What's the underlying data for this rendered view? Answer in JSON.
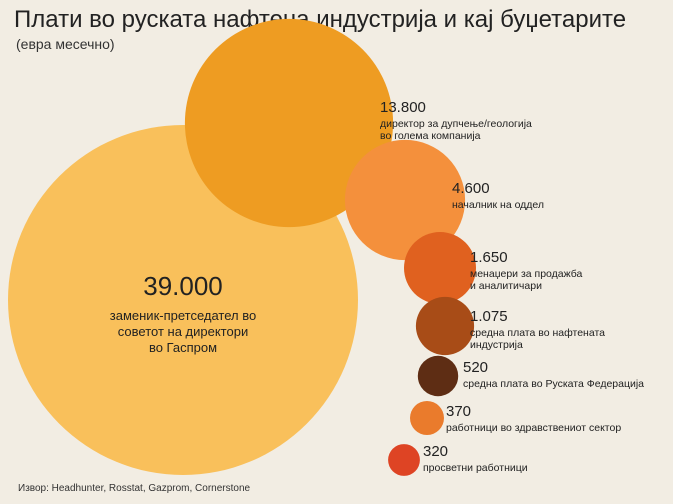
{
  "title": "Плати во руската нафтена индустрија и кај буџетарите",
  "subtitle": "(евра месечно)",
  "source": "Извор: Headhunter, Rosstat, Gazprom, Cornerstone",
  "chart_data": {
    "type": "bubble",
    "title": "Плати во руската нафтена индустрија и кај буџетарите",
    "subtitle": "(евра месечно)",
    "unit": "евра месечно",
    "series": [
      {
        "value": 39000,
        "value_label": "39.000",
        "label_lines": [
          "заменик-претседател во",
          "советот на директори",
          "во Гаспром"
        ],
        "color": "#f9c05b"
      },
      {
        "value": 13800,
        "value_label": "13.800",
        "label_lines": [
          "директор за дупчење/геологија",
          "во голема компанија"
        ],
        "color": "#ee9c22"
      },
      {
        "value": 4600,
        "value_label": "4.600",
        "label_lines": [
          "началник на оддел"
        ],
        "color": "#f4903c"
      },
      {
        "value": 1650,
        "value_label": "1.650",
        "label_lines": [
          "менаџери за продажба",
          "и аналитичари"
        ],
        "color": "#e0611f"
      },
      {
        "value": 1075,
        "value_label": "1.075",
        "label_lines": [
          "средна плата во нафтената",
          "индустрија"
        ],
        "color": "#a84c17"
      },
      {
        "value": 520,
        "value_label": "520",
        "label_lines": [
          "средна плата во Руската Федерација"
        ],
        "color": "#5e2d14"
      },
      {
        "value": 370,
        "value_label": "370",
        "label_lines": [
          "работници во здравствениот сектор"
        ],
        "color": "#ea7b2c"
      },
      {
        "value": 320,
        "value_label": "320",
        "label_lines": [
          "просветни работници"
        ],
        "color": "#de4424"
      }
    ]
  }
}
